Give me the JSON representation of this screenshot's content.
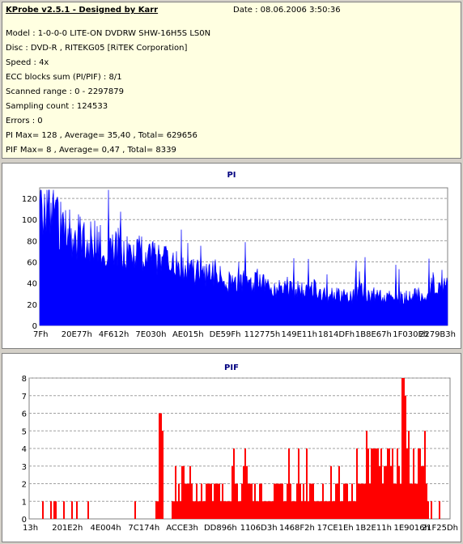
{
  "info": {
    "title": "KProbe v2.5.1 - Designed by Karr",
    "date": "Date : 08.06.2006 3:50:36",
    "lines": [
      "Model : 1-0-0-0 LITE-ON DVDRW SHW-16H5S  LS0N",
      "Disc : DVD-R , RITEKG05 [RiTEK Corporation]",
      "Speed : 4x",
      "ECC blocks sum (PI/PIF) : 8/1",
      "Scanned range : 0 - 2297879",
      "Sampling count : 124533",
      "Errors : 0",
      "PI Max= 128 , Average= 35,40 , Total= 629656",
      "PIF Max= 8 , Average= 0,47 , Total= 8339"
    ]
  },
  "chart_data": [
    {
      "type": "area",
      "title": "PI",
      "color": "#0000ff",
      "ylim": [
        0,
        130
      ],
      "yticks": [
        0,
        20,
        40,
        60,
        80,
        100,
        120
      ],
      "xtick_labels": [
        "7Fh",
        "20E77h",
        "4F612h",
        "7E030h",
        "AE015h",
        "DE59Fh",
        "112775h",
        "149E11h",
        "1814DFh",
        "1B8E67h",
        "1F030Eh",
        "2279B3h"
      ],
      "grid": true,
      "profile": [
        110,
        108,
        102,
        92,
        85,
        82,
        80,
        78,
        76,
        74,
        73,
        71,
        70,
        68,
        66,
        65,
        62,
        60,
        58,
        55,
        54,
        52,
        48,
        46,
        45,
        48,
        42,
        40,
        38,
        41,
        36,
        42,
        38,
        35,
        34,
        38,
        33,
        32,
        30,
        34,
        29,
        28,
        31,
        27,
        26,
        28,
        32,
        25,
        30,
        27,
        34,
        24,
        26,
        28,
        30,
        25,
        40,
        35,
        38
      ],
      "max": 128
    },
    {
      "type": "bar",
      "title": "PIF",
      "color": "#ff0000",
      "ylim": [
        0,
        8
      ],
      "yticks": [
        0,
        1,
        2,
        3,
        4,
        5,
        6,
        7,
        8
      ],
      "xtick_labels": [
        "13h",
        "201E2h",
        "4E004h",
        "7C174h",
        "ACCE3h",
        "DD896h",
        "1106D3h",
        "1468F2h",
        "17CE1Eh",
        "1B2E11h",
        "1E9016h",
        "21F25Dh"
      ],
      "grid": true,
      "max": 8
    }
  ]
}
